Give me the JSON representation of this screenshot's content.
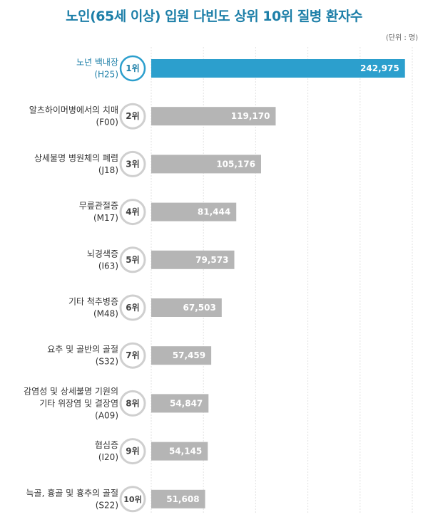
{
  "title": "노인(65세 이상) 입원 다빈도 상위 10위 질병 환자수",
  "unit": "(단위 : 명)",
  "colors": {
    "highlight_bar": "#2c9fcd",
    "bar": "#b5b5b5",
    "highlight_rank_text": "#1d7fa8",
    "rank_text": "#444444"
  },
  "chart_data": {
    "type": "bar",
    "orientation": "horizontal",
    "title": "노인(65세 이상) 입원 다빈도 상위 10위 질병 환자수",
    "unit": "(단위 : 명)",
    "xlim": [
      0,
      250000
    ],
    "grid": true,
    "categories": [
      {
        "rank": "1위",
        "name_lines": [
          "노년 백내장"
        ],
        "code": "(H25)",
        "value": 242975,
        "label": "242,975"
      },
      {
        "rank": "2위",
        "name_lines": [
          "알츠하이머병에서의 치매"
        ],
        "code": "(F00)",
        "value": 119170,
        "label": "119,170"
      },
      {
        "rank": "3위",
        "name_lines": [
          "상세불명 병원체의 폐렴"
        ],
        "code": "(J18)",
        "value": 105176,
        "label": "105,176"
      },
      {
        "rank": "4위",
        "name_lines": [
          "무릎관절증"
        ],
        "code": "(M17)",
        "value": 81444,
        "label": "81,444"
      },
      {
        "rank": "5위",
        "name_lines": [
          "뇌경색증"
        ],
        "code": "(I63)",
        "value": 79573,
        "label": "79,573"
      },
      {
        "rank": "6위",
        "name_lines": [
          "기타 척추병증"
        ],
        "code": "(M48)",
        "value": 67503,
        "label": "67,503"
      },
      {
        "rank": "7위",
        "name_lines": [
          "요추 및 골반의 골절"
        ],
        "code": "(S32)",
        "value": 57459,
        "label": "57,459"
      },
      {
        "rank": "8위",
        "name_lines": [
          "감염성 및 상세불명 기원의",
          "기타 위장염 및 결장염"
        ],
        "code": "(A09)",
        "value": 54847,
        "label": "54,847"
      },
      {
        "rank": "9위",
        "name_lines": [
          "협심증"
        ],
        "code": "(I20)",
        "value": 54145,
        "label": "54,145"
      },
      {
        "rank": "10위",
        "name_lines": [
          "늑골, 흉골 및 흉추의 골절"
        ],
        "code": "(S22)",
        "value": 51608,
        "label": "51,608"
      }
    ]
  }
}
